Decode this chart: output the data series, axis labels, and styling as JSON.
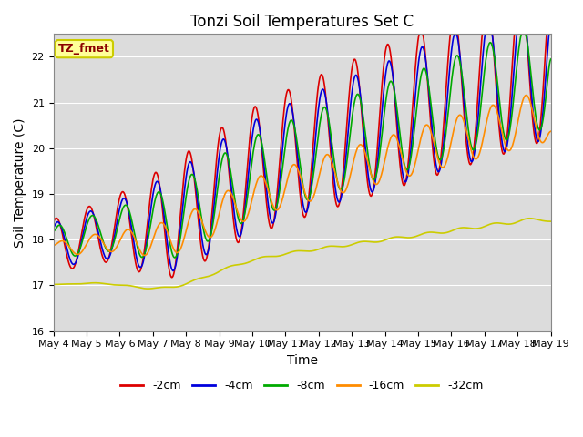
{
  "title": "Tonzi Soil Temperatures Set C",
  "xlabel": "Time",
  "ylabel": "Soil Temperature (C)",
  "ylim": [
    16.0,
    22.5
  ],
  "xlim_days": 15,
  "x_tick_labels": [
    "May 4",
    "May 5",
    "May 6",
    "May 7",
    "May 8",
    "May 9",
    "May 10",
    "May 11",
    "May 12",
    "May 13",
    "May 14",
    "May 15",
    "May 16",
    "May 17",
    "May 18",
    "May 19"
  ],
  "annotation_text": "TZ_fmet",
  "annotation_color": "#8B0000",
  "annotation_bg": "#FFFF99",
  "annotation_border": "#CCCC00",
  "bg_color": "#DCDCDC",
  "grid_color": "#FFFFFF",
  "lines": {
    "-2cm": {
      "color": "#DD0000",
      "lw": 1.2
    },
    "-4cm": {
      "color": "#0000DD",
      "lw": 1.2
    },
    "-8cm": {
      "color": "#00AA00",
      "lw": 1.2
    },
    "-16cm": {
      "color": "#FF8C00",
      "lw": 1.2
    },
    "-32cm": {
      "color": "#CCCC00",
      "lw": 1.2
    }
  },
  "title_fontsize": 12,
  "axis_label_fontsize": 10,
  "tick_fontsize": 8,
  "legend_fontsize": 9
}
